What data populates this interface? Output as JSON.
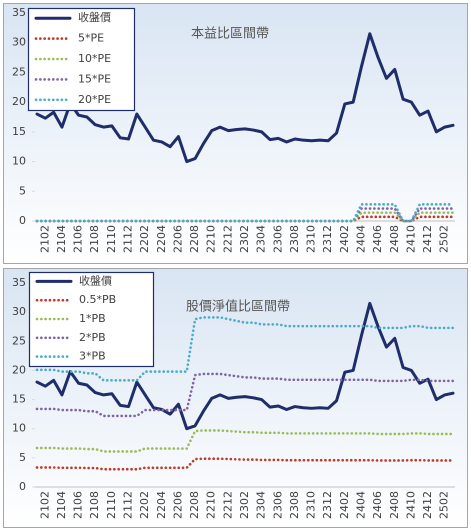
{
  "chart_data": [
    {
      "type": "line",
      "annotation": "本益比區間帶",
      "categories": [
        null,
        "2102",
        null,
        "2104",
        null,
        "2106",
        null,
        "2108",
        null,
        "2110",
        null,
        "2112",
        null,
        "2202",
        null,
        "2204",
        null,
        "2206",
        null,
        "2208",
        null,
        "2210",
        null,
        "2212",
        null,
        "2302",
        null,
        "2304",
        null,
        "2306",
        null,
        "2308",
        null,
        "2310",
        null,
        "2312",
        null,
        "2402",
        null,
        "2404",
        null,
        "2406",
        null,
        "2408",
        null,
        "2410",
        null,
        "2412",
        null,
        "2502",
        null
      ],
      "series": [
        {
          "name": "收盤價",
          "color": "#1f2d6b",
          "style": "solid",
          "values": [
            18,
            17.3,
            18.3,
            15.8,
            19.8,
            17.8,
            17.5,
            16.2,
            15.8,
            16,
            14,
            13.8,
            18,
            15.8,
            13.6,
            13.3,
            12.5,
            14.2,
            10,
            10.5,
            13,
            15.2,
            15.8,
            15.2,
            15.4,
            15.5,
            15.3,
            15,
            13.7,
            13.9,
            13.3,
            13.8,
            13.6,
            13.5,
            13.6,
            13.5,
            14.8,
            19.7,
            20,
            26,
            31.5,
            27.5,
            24,
            25.5,
            20.5,
            20,
            17.8,
            18.5,
            15,
            15.8,
            16.1
          ]
        },
        {
          "name": "5*PE",
          "color": "#c0392b",
          "style": "dotted",
          "values": [
            0,
            0,
            0,
            0,
            0,
            0,
            0,
            0,
            0,
            0,
            0,
            0,
            0,
            0,
            0,
            0,
            0,
            0,
            0,
            0,
            0,
            0,
            0,
            0,
            0,
            0,
            0,
            0,
            0,
            0,
            0,
            0,
            0,
            0,
            0,
            0,
            0,
            0,
            0,
            0.7,
            0.7,
            0.7,
            0.7,
            0.7,
            0,
            0,
            0.7,
            0.7,
            0.7,
            0.7,
            0.7
          ]
        },
        {
          "name": "10*PE",
          "color": "#9bbb59",
          "style": "dotted",
          "values": [
            0,
            0,
            0,
            0,
            0,
            0,
            0,
            0,
            0,
            0,
            0,
            0,
            0,
            0,
            0,
            0,
            0,
            0,
            0,
            0,
            0,
            0,
            0,
            0,
            0,
            0,
            0,
            0,
            0,
            0,
            0,
            0,
            0,
            0,
            0,
            0,
            0,
            0,
            0,
            1.4,
            1.4,
            1.4,
            1.4,
            1.4,
            0,
            0,
            1.4,
            1.4,
            1.4,
            1.4,
            1.4
          ]
        },
        {
          "name": "15*PE",
          "color": "#8064a2",
          "style": "dotted",
          "values": [
            0,
            0,
            0,
            0,
            0,
            0,
            0,
            0,
            0,
            0,
            0,
            0,
            0,
            0,
            0,
            0,
            0,
            0,
            0,
            0,
            0,
            0,
            0,
            0,
            0,
            0,
            0,
            0,
            0,
            0,
            0,
            0,
            0,
            0,
            0,
            0,
            0,
            0,
            0,
            2.1,
            2.1,
            2.1,
            2.1,
            2.1,
            0,
            0,
            2.1,
            2.1,
            2.1,
            2.1,
            2.1
          ]
        },
        {
          "name": "20*PE",
          "color": "#4bacc6",
          "style": "dotted",
          "values": [
            0,
            0,
            0,
            0,
            0,
            0,
            0,
            0,
            0,
            0,
            0,
            0,
            0,
            0,
            0,
            0,
            0,
            0,
            0,
            0,
            0,
            0,
            0,
            0,
            0,
            0,
            0,
            0,
            0,
            0,
            0,
            0,
            0,
            0,
            0,
            0,
            0,
            0,
            0,
            2.8,
            2.8,
            2.8,
            2.8,
            2.8,
            0,
            0,
            2.8,
            2.8,
            2.8,
            2.8,
            2.8
          ]
        }
      ],
      "ylim": [
        0,
        35
      ],
      "yticks": [
        0,
        5,
        10,
        15,
        20,
        25,
        30,
        35
      ],
      "grid": false,
      "legend": "upper-left"
    },
    {
      "type": "line",
      "annotation": "股價淨值比區間帶",
      "categories": [
        null,
        "2102",
        null,
        "2104",
        null,
        "2106",
        null,
        "2108",
        null,
        "2110",
        null,
        "2112",
        null,
        "2202",
        null,
        "2204",
        null,
        "2206",
        null,
        "2208",
        null,
        "2210",
        null,
        "2212",
        null,
        "2302",
        null,
        "2304",
        null,
        "2306",
        null,
        "2308",
        null,
        "2310",
        null,
        "2312",
        null,
        "2402",
        null,
        "2404",
        null,
        "2406",
        null,
        "2408",
        null,
        "2410",
        null,
        "2412",
        null,
        "2502",
        null
      ],
      "series": [
        {
          "name": "收盤價",
          "color": "#1f2d6b",
          "style": "solid",
          "values": [
            18,
            17.3,
            18.3,
            15.8,
            19.8,
            17.8,
            17.5,
            16.2,
            15.8,
            16,
            14,
            13.8,
            18,
            15.8,
            13.6,
            13.3,
            12.5,
            14.2,
            10,
            10.5,
            13,
            15.2,
            15.8,
            15.2,
            15.4,
            15.5,
            15.3,
            15,
            13.7,
            13.9,
            13.3,
            13.8,
            13.6,
            13.5,
            13.6,
            13.5,
            14.8,
            19.7,
            20,
            26,
            31.5,
            27.5,
            24,
            25.5,
            20.5,
            20,
            17.8,
            18.5,
            15,
            15.8,
            16.1
          ]
        },
        {
          "name": "0.5*PB",
          "color": "#c0392b",
          "style": "dotted",
          "values": [
            3.35,
            3.35,
            3.35,
            3.3,
            3.3,
            3.3,
            3.25,
            3.25,
            3.05,
            3.05,
            3.05,
            3.05,
            3.05,
            3.3,
            3.3,
            3.3,
            3.3,
            3.3,
            3.3,
            4.8,
            4.85,
            4.85,
            4.85,
            4.8,
            4.75,
            4.7,
            4.7,
            4.65,
            4.65,
            4.65,
            4.6,
            4.6,
            4.6,
            4.6,
            4.6,
            4.6,
            4.6,
            4.6,
            4.6,
            4.6,
            4.6,
            4.55,
            4.55,
            4.55,
            4.55,
            4.6,
            4.6,
            4.55,
            4.55,
            4.55,
            4.55
          ]
        },
        {
          "name": "1*PB",
          "color": "#9bbb59",
          "style": "dotted",
          "values": [
            6.7,
            6.7,
            6.7,
            6.6,
            6.6,
            6.6,
            6.5,
            6.5,
            6.1,
            6.1,
            6.1,
            6.1,
            6.1,
            6.6,
            6.6,
            6.6,
            6.6,
            6.6,
            6.6,
            9.6,
            9.7,
            9.7,
            9.7,
            9.6,
            9.5,
            9.4,
            9.4,
            9.3,
            9.3,
            9.3,
            9.2,
            9.2,
            9.2,
            9.2,
            9.2,
            9.2,
            9.2,
            9.2,
            9.2,
            9.2,
            9.2,
            9.1,
            9.1,
            9.1,
            9.1,
            9.2,
            9.2,
            9.1,
            9.1,
            9.1,
            9.1
          ]
        },
        {
          "name": "2*PB",
          "color": "#8064a2",
          "style": "dotted",
          "values": [
            13.4,
            13.4,
            13.4,
            13.2,
            13.2,
            13.2,
            13,
            13,
            12.2,
            12.2,
            12.2,
            12.2,
            12.2,
            13.2,
            13.2,
            13.2,
            13.2,
            13.2,
            13.2,
            19.2,
            19.4,
            19.4,
            19.4,
            19.2,
            19,
            18.8,
            18.8,
            18.6,
            18.6,
            18.6,
            18.4,
            18.4,
            18.4,
            18.4,
            18.4,
            18.4,
            18.4,
            18.4,
            18.4,
            18.4,
            18.4,
            18.2,
            18.2,
            18.2,
            18.2,
            18.4,
            18.4,
            18.2,
            18.2,
            18.2,
            18.2
          ]
        },
        {
          "name": "3*PB",
          "color": "#4bacc6",
          "style": "dotted",
          "values": [
            20.1,
            20.1,
            20.1,
            19.8,
            19.8,
            19.8,
            19.5,
            19.5,
            18.3,
            18.3,
            18.3,
            18.3,
            18.3,
            19.8,
            19.8,
            19.8,
            19.8,
            19.8,
            19.8,
            28.8,
            29.1,
            29.1,
            29.1,
            28.8,
            28.5,
            28.2,
            28.2,
            27.9,
            27.9,
            27.9,
            27.6,
            27.6,
            27.6,
            27.6,
            27.6,
            27.6,
            27.6,
            27.6,
            27.6,
            27.6,
            27.6,
            27.3,
            27.3,
            27.3,
            27.3,
            27.6,
            27.6,
            27.3,
            27.3,
            27.3,
            27.3
          ]
        }
      ],
      "ylim": [
        0,
        35
      ],
      "yticks": [
        0,
        5,
        10,
        15,
        20,
        25,
        30,
        35
      ],
      "grid": false,
      "legend": "upper-left"
    }
  ]
}
